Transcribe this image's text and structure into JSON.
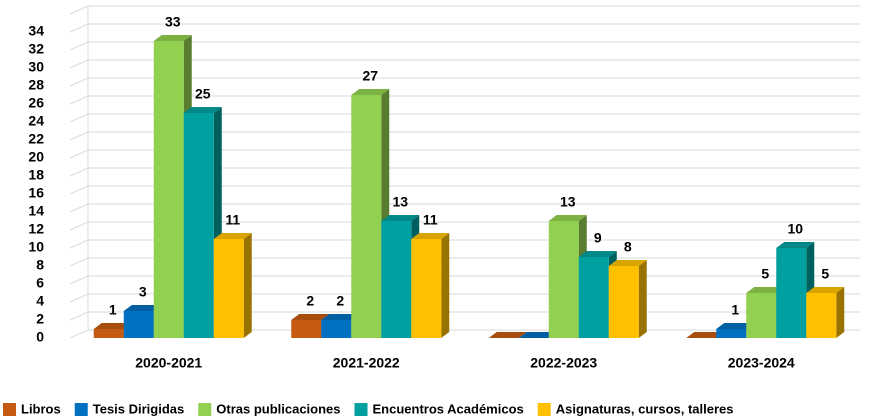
{
  "chart_data": {
    "type": "bar3d",
    "categories": [
      "2020-2021",
      "2021-2022",
      "2022-2023",
      "2023-2024"
    ],
    "series": [
      {
        "name": "Libros",
        "color": "#c55a11",
        "values": [
          1,
          2,
          0,
          0
        ],
        "value_labels": [
          "1",
          "2",
          null,
          null
        ]
      },
      {
        "name": "Tesis Dirigidas",
        "color": "#0070c0",
        "values": [
          3,
          2,
          0,
          1
        ],
        "value_labels": [
          "3",
          "2",
          null,
          "1"
        ]
      },
      {
        "name": "Otras publicaciones",
        "color": "#92d050",
        "values": [
          33,
          27,
          13,
          5
        ]
      },
      {
        "name": "Encuentros Académicos",
        "color": "#00a0a0",
        "values": [
          25,
          13,
          9,
          10
        ]
      },
      {
        "name": "Asignaturas, cursos, talleres",
        "color": "#ffc000",
        "values": [
          11,
          11,
          8,
          5
        ]
      }
    ],
    "ylim": [
      0,
      36
    ],
    "yticks": [
      0,
      2,
      4,
      6,
      8,
      10,
      12,
      14,
      16,
      18,
      20,
      22,
      24,
      26,
      28,
      30,
      32,
      34
    ],
    "grid": true,
    "legend": "bottom"
  }
}
